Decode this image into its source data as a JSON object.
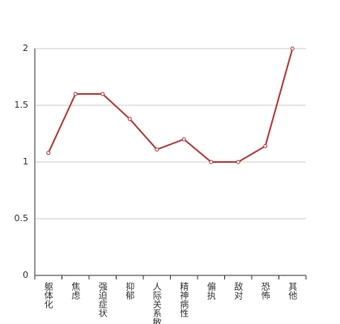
{
  "chart_data": {
    "type": "line",
    "categories": [
      "躯体化",
      "焦虑",
      "强迫症状",
      "抑郁",
      "人际关系敏感",
      "精神病性",
      "偏执",
      "敌对",
      "恐怖",
      "其他"
    ],
    "values": [
      1.08,
      1.6,
      1.6,
      1.38,
      1.11,
      1.2,
      1.0,
      1.0,
      1.14,
      2.0
    ],
    "color": "#b83b3b",
    "ylim": [
      0,
      2
    ],
    "yticks": [
      0,
      0.5,
      1,
      1.5,
      2
    ],
    "grid": true
  }
}
